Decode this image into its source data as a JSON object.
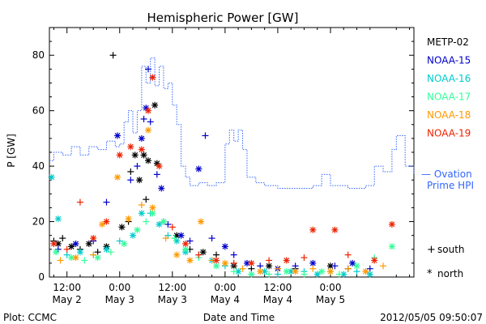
{
  "chart_data": {
    "type": "scatter",
    "title": "Hemispheric Power [GW]",
    "ylabel": "P [GW]",
    "xlabel": "Date and Time",
    "ylim": [
      0,
      90
    ],
    "xlim": [
      "2012-05-02 08:00",
      "2012-05-05 19:00"
    ],
    "y_ticks": [
      0,
      20,
      40,
      60,
      80
    ],
    "x_ticks": [
      {
        "t": "2012-05-02 12:00",
        "line1": "12:00",
        "line2": "May 2"
      },
      {
        "t": "2012-05-03 00:00",
        "line1": "0:00",
        "line2": "May 3"
      },
      {
        "t": "2012-05-03 12:00",
        "line1": "12:00",
        "line2": "May 3"
      },
      {
        "t": "2012-05-04 00:00",
        "line1": "0:00",
        "line2": "May 4"
      },
      {
        "t": "2012-05-04 12:00",
        "line1": "12:00",
        "line2": "May 4"
      },
      {
        "t": "2012-05-05 00:00",
        "line1": "0:00",
        "line2": "May 5"
      }
    ],
    "legend_placement": "right",
    "markers_legend": [
      {
        "symbol": "+",
        "label": "south"
      },
      {
        "symbol": "*",
        "label": "north"
      }
    ],
    "series": [
      {
        "name": "METP-02",
        "color": "#000000",
        "points": [
          [
            "2012-05-02 09:00",
            13,
            "+"
          ],
          [
            "2012-05-02 10:00",
            12,
            "*"
          ],
          [
            "2012-05-02 11:00",
            14,
            "+"
          ],
          [
            "2012-05-02 13:00",
            11,
            "*"
          ],
          [
            "2012-05-02 15:00",
            10,
            "+"
          ],
          [
            "2012-05-02 17:00",
            12,
            "*"
          ],
          [
            "2012-05-02 19:00",
            9,
            "+"
          ],
          [
            "2012-05-02 21:00",
            11,
            "*"
          ],
          [
            "2012-05-02 22:30",
            80,
            "+"
          ],
          [
            "2012-05-03 00:30",
            18,
            "*"
          ],
          [
            "2012-05-03 02:00",
            20,
            "+"
          ],
          [
            "2012-05-03 02:30",
            38,
            "+"
          ],
          [
            "2012-05-03 03:30",
            44,
            "*"
          ],
          [
            "2012-05-03 04:30",
            35,
            "*"
          ],
          [
            "2012-05-03 05:30",
            44,
            "*"
          ],
          [
            "2012-05-03 06:00",
            28,
            "+"
          ],
          [
            "2012-05-03 06:30",
            42,
            "*"
          ],
          [
            "2012-05-03 08:00",
            62,
            "*"
          ],
          [
            "2012-05-03 08:30",
            41,
            "*"
          ],
          [
            "2012-05-03 10:00",
            20,
            "+"
          ],
          [
            "2012-05-03 13:00",
            15,
            "*"
          ],
          [
            "2012-05-03 16:00",
            10,
            "+"
          ],
          [
            "2012-05-03 19:00",
            9,
            "*"
          ],
          [
            "2012-05-03 22:00",
            8,
            "+"
          ],
          [
            "2012-05-04 02:00",
            4,
            "*"
          ],
          [
            "2012-05-04 06:00",
            3,
            "+"
          ],
          [
            "2012-05-04 10:00",
            4,
            "*"
          ],
          [
            "2012-05-04 16:00",
            3,
            "+"
          ],
          [
            "2012-05-05 00:00",
            4,
            "*"
          ],
          [
            "2012-05-05 04:00",
            3,
            "+"
          ]
        ]
      },
      {
        "name": "NOAA-15",
        "color": "#0000cc",
        "points": [
          [
            "2012-05-02 10:00",
            10,
            "+"
          ],
          [
            "2012-05-02 14:00",
            12,
            "*"
          ],
          [
            "2012-05-02 18:00",
            13,
            "+"
          ],
          [
            "2012-05-02 21:00",
            27,
            "+"
          ],
          [
            "2012-05-02 23:30",
            51,
            "*"
          ],
          [
            "2012-05-03 02:30",
            35,
            "+"
          ],
          [
            "2012-05-03 04:00",
            40,
            "+"
          ],
          [
            "2012-05-03 05:00",
            50,
            "*"
          ],
          [
            "2012-05-03 05:30",
            57,
            "+"
          ],
          [
            "2012-05-03 06:00",
            61,
            "*"
          ],
          [
            "2012-05-03 06:30",
            75,
            "+"
          ],
          [
            "2012-05-03 07:00",
            56,
            "+"
          ],
          [
            "2012-05-03 08:30",
            37,
            "+"
          ],
          [
            "2012-05-03 09:30",
            32,
            "*"
          ],
          [
            "2012-05-03 11:00",
            19,
            "+"
          ],
          [
            "2012-05-03 14:00",
            15,
            "*"
          ],
          [
            "2012-05-03 16:00",
            13,
            "+"
          ],
          [
            "2012-05-03 18:00",
            39,
            "*"
          ],
          [
            "2012-05-03 19:30",
            51,
            "+"
          ],
          [
            "2012-05-03 21:00",
            14,
            "+"
          ],
          [
            "2012-05-04 00:00",
            11,
            "*"
          ],
          [
            "2012-05-04 02:00",
            8,
            "+"
          ],
          [
            "2012-05-04 05:00",
            5,
            "*"
          ],
          [
            "2012-05-04 08:00",
            4,
            "+"
          ],
          [
            "2012-05-04 12:00",
            3,
            "*"
          ],
          [
            "2012-05-04 16:00",
            4,
            "+"
          ],
          [
            "2012-05-04 20:00",
            5,
            "*"
          ],
          [
            "2012-05-05 01:00",
            4,
            "+"
          ],
          [
            "2012-05-05 05:00",
            5,
            "*"
          ],
          [
            "2012-05-05 09:00",
            3,
            "+"
          ]
        ]
      },
      {
        "name": "NOAA-16",
        "color": "#00cccc",
        "points": [
          [
            "2012-05-02 08:30",
            36,
            "*"
          ],
          [
            "2012-05-02 10:00",
            21,
            "*"
          ],
          [
            "2012-05-02 12:00",
            8,
            "+"
          ],
          [
            "2012-05-02 15:00",
            9,
            "*"
          ],
          [
            "2012-05-02 18:00",
            8,
            "+"
          ],
          [
            "2012-05-02 21:00",
            10,
            "*"
          ],
          [
            "2012-05-03 00:00",
            13,
            "+"
          ],
          [
            "2012-05-03 03:00",
            15,
            "*"
          ],
          [
            "2012-05-03 05:00",
            23,
            "*"
          ],
          [
            "2012-05-03 07:00",
            23,
            "+"
          ],
          [
            "2012-05-03 09:00",
            19,
            "*"
          ],
          [
            "2012-05-03 11:00",
            15,
            "+"
          ],
          [
            "2012-05-03 13:00",
            13,
            "*"
          ],
          [
            "2012-05-03 15:00",
            9,
            "*"
          ],
          [
            "2012-05-03 18:00",
            8,
            "+"
          ],
          [
            "2012-05-03 21:00",
            6,
            "*"
          ],
          [
            "2012-05-04 00:00",
            4,
            "+"
          ],
          [
            "2012-05-04 03:00",
            2,
            "*"
          ],
          [
            "2012-05-04 06:00",
            1,
            "+"
          ],
          [
            "2012-05-04 09:00",
            2,
            "*"
          ],
          [
            "2012-05-04 12:00",
            1,
            "+"
          ],
          [
            "2012-05-04 15:00",
            2,
            "*"
          ],
          [
            "2012-05-04 18:00",
            2,
            "+"
          ],
          [
            "2012-05-04 21:00",
            1,
            "*"
          ],
          [
            "2012-05-05 00:00",
            2,
            "+"
          ],
          [
            "2012-05-05 03:00",
            1,
            "*"
          ],
          [
            "2012-05-05 06:00",
            2,
            "+"
          ],
          [
            "2012-05-05 09:00",
            1,
            "*"
          ]
        ]
      },
      {
        "name": "NOAA-17",
        "color": "#33ff99",
        "points": [
          [
            "2012-05-02 09:30",
            9,
            "*"
          ],
          [
            "2012-05-02 13:00",
            7,
            "*"
          ],
          [
            "2012-05-02 16:00",
            6,
            "+"
          ],
          [
            "2012-05-02 19:00",
            7,
            "*"
          ],
          [
            "2012-05-02 22:00",
            9,
            "+"
          ],
          [
            "2012-05-03 01:00",
            12,
            "*"
          ],
          [
            "2012-05-03 04:00",
            17,
            "*"
          ],
          [
            "2012-05-03 06:00",
            20,
            "+"
          ],
          [
            "2012-05-03 07:30",
            23,
            "*"
          ],
          [
            "2012-05-03 10:00",
            20,
            "*"
          ],
          [
            "2012-05-03 12:30",
            14,
            "+"
          ],
          [
            "2012-05-03 15:00",
            10,
            "*"
          ],
          [
            "2012-05-03 18:00",
            7,
            "+"
          ],
          [
            "2012-05-03 22:00",
            4,
            "*"
          ],
          [
            "2012-05-04 02:00",
            2,
            "+"
          ],
          [
            "2012-05-04 06:00",
            1,
            "*"
          ],
          [
            "2012-05-04 10:00",
            1,
            "+"
          ],
          [
            "2012-05-04 14:00",
            2,
            "*"
          ],
          [
            "2012-05-04 18:00",
            1,
            "+"
          ],
          [
            "2012-05-04 22:00",
            2,
            "*"
          ],
          [
            "2012-05-05 02:00",
            1,
            "+"
          ],
          [
            "2012-05-05 06:00",
            4,
            "*"
          ],
          [
            "2012-05-05 10:00",
            7,
            "+"
          ],
          [
            "2012-05-05 14:00",
            11,
            "*"
          ]
        ]
      },
      {
        "name": "NOAA-18",
        "color": "#ff9900",
        "points": [
          [
            "2012-05-02 10:30",
            6,
            "+"
          ],
          [
            "2012-05-02 14:00",
            7,
            "*"
          ],
          [
            "2012-05-02 18:00",
            8,
            "+"
          ],
          [
            "2012-05-02 20:00",
            19,
            "*"
          ],
          [
            "2012-05-02 23:30",
            36,
            "*"
          ],
          [
            "2012-05-03 02:00",
            21,
            "*"
          ],
          [
            "2012-05-03 05:00",
            26,
            "+"
          ],
          [
            "2012-05-03 06:30",
            53,
            "*"
          ],
          [
            "2012-05-03 07:30",
            25,
            "*"
          ],
          [
            "2012-05-03 10:30",
            14,
            "+"
          ],
          [
            "2012-05-03 13:00",
            8,
            "*"
          ],
          [
            "2012-05-03 16:00",
            6,
            "*"
          ],
          [
            "2012-05-03 18:30",
            20,
            "*"
          ],
          [
            "2012-05-03 21:00",
            6,
            "+"
          ],
          [
            "2012-05-04 00:00",
            5,
            "*"
          ],
          [
            "2012-05-04 04:00",
            3,
            "+"
          ],
          [
            "2012-05-04 08:00",
            2,
            "*"
          ],
          [
            "2012-05-04 12:00",
            3,
            "+"
          ],
          [
            "2012-05-04 16:00",
            2,
            "*"
          ],
          [
            "2012-05-04 20:00",
            3,
            "+"
          ],
          [
            "2012-05-05 00:00",
            2,
            "*"
          ],
          [
            "2012-05-05 04:00",
            3,
            "+"
          ],
          [
            "2012-05-05 08:00",
            2,
            "*"
          ],
          [
            "2012-05-05 12:00",
            4,
            "+"
          ]
        ]
      },
      {
        "name": "NOAA-19",
        "color": "#ee2200",
        "points": [
          [
            "2012-05-02 09:00",
            12,
            "*"
          ],
          [
            "2012-05-02 12:00",
            10,
            "+"
          ],
          [
            "2012-05-02 15:00",
            27,
            "+"
          ],
          [
            "2012-05-02 18:00",
            14,
            "*"
          ],
          [
            "2012-05-02 21:00",
            20,
            "*"
          ],
          [
            "2012-05-03 00:00",
            44,
            "*"
          ],
          [
            "2012-05-03 02:30",
            47,
            "*"
          ],
          [
            "2012-05-03 05:00",
            46,
            "*"
          ],
          [
            "2012-05-03 06:30",
            60,
            "*"
          ],
          [
            "2012-05-03 07:30",
            72,
            "*"
          ],
          [
            "2012-05-03 09:00",
            40,
            "*"
          ],
          [
            "2012-05-03 12:00",
            18,
            "+"
          ],
          [
            "2012-05-03 15:00",
            12,
            "*"
          ],
          [
            "2012-05-03 18:00",
            8,
            "+"
          ],
          [
            "2012-05-03 22:00",
            6,
            "*"
          ],
          [
            "2012-05-04 02:00",
            5,
            "+"
          ],
          [
            "2012-05-04 06:00",
            5,
            "*"
          ],
          [
            "2012-05-04 10:00",
            6,
            "+"
          ],
          [
            "2012-05-04 14:00",
            6,
            "*"
          ],
          [
            "2012-05-04 18:00",
            7,
            "+"
          ],
          [
            "2012-05-04 20:00",
            17,
            "*"
          ],
          [
            "2012-05-05 01:00",
            17,
            "*"
          ],
          [
            "2012-05-05 04:00",
            8,
            "+"
          ],
          [
            "2012-05-05 10:00",
            6,
            "*"
          ],
          [
            "2012-05-05 14:00",
            19,
            "*"
          ]
        ]
      }
    ],
    "ovation": {
      "name_line1": "— Ovation",
      "name_line2": "Prime HPI",
      "color": "#3366ff",
      "points": [
        [
          "2012-05-02 08:00",
          42
        ],
        [
          "2012-05-02 09:00",
          45
        ],
        [
          "2012-05-02 11:00",
          44
        ],
        [
          "2012-05-02 13:00",
          47
        ],
        [
          "2012-05-02 15:00",
          44
        ],
        [
          "2012-05-02 17:00",
          47
        ],
        [
          "2012-05-02 19:00",
          46
        ],
        [
          "2012-05-02 21:00",
          49
        ],
        [
          "2012-05-02 23:00",
          47
        ],
        [
          "2012-05-03 00:00",
          48
        ],
        [
          "2012-05-03 01:00",
          56
        ],
        [
          "2012-05-03 02:00",
          60
        ],
        [
          "2012-05-03 03:00",
          52
        ],
        [
          "2012-05-03 04:00",
          60
        ],
        [
          "2012-05-03 05:00",
          76
        ],
        [
          "2012-05-03 06:00",
          70
        ],
        [
          "2012-05-03 07:00",
          79
        ],
        [
          "2012-05-03 08:00",
          69
        ],
        [
          "2012-05-03 09:00",
          76
        ],
        [
          "2012-05-03 10:00",
          68
        ],
        [
          "2012-05-03 11:00",
          70
        ],
        [
          "2012-05-03 12:00",
          62
        ],
        [
          "2012-05-03 13:00",
          55
        ],
        [
          "2012-05-03 14:00",
          40
        ],
        [
          "2012-05-03 15:00",
          36
        ],
        [
          "2012-05-03 16:00",
          33
        ],
        [
          "2012-05-03 18:00",
          34
        ],
        [
          "2012-05-03 20:00",
          33
        ],
        [
          "2012-05-03 22:00",
          34
        ],
        [
          "2012-05-04 00:00",
          48
        ],
        [
          "2012-05-04 01:00",
          53
        ],
        [
          "2012-05-04 02:00",
          49
        ],
        [
          "2012-05-04 03:00",
          53
        ],
        [
          "2012-05-04 04:00",
          46
        ],
        [
          "2012-05-04 05:00",
          36
        ],
        [
          "2012-05-04 07:00",
          34
        ],
        [
          "2012-05-04 09:00",
          33
        ],
        [
          "2012-05-04 12:00",
          32
        ],
        [
          "2012-05-04 16:00",
          32
        ],
        [
          "2012-05-04 20:00",
          33
        ],
        [
          "2012-05-04 22:00",
          37
        ],
        [
          "2012-05-05 00:00",
          33
        ],
        [
          "2012-05-05 04:00",
          32
        ],
        [
          "2012-05-05 08:00",
          33
        ],
        [
          "2012-05-05 10:00",
          40
        ],
        [
          "2012-05-05 12:00",
          38
        ],
        [
          "2012-05-05 14:00",
          46
        ],
        [
          "2012-05-05 15:00",
          51
        ],
        [
          "2012-05-05 17:00",
          40
        ],
        [
          "2012-05-05 19:00",
          37
        ]
      ]
    }
  },
  "footer": {
    "left": "Plot: CCMC",
    "right": "2012/05/05 09:50:07"
  }
}
